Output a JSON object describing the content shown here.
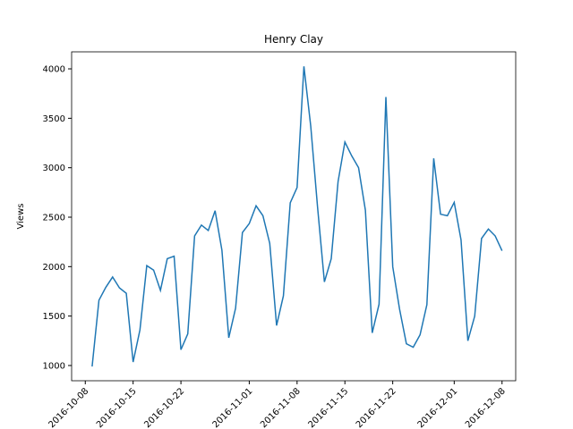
{
  "chart_data": {
    "type": "line",
    "title": "Henry Clay",
    "ylabel": "Views",
    "x": [
      "2016-10-09",
      "2016-10-10",
      "2016-10-11",
      "2016-10-12",
      "2016-10-13",
      "2016-10-14",
      "2016-10-15",
      "2016-10-16",
      "2016-10-17",
      "2016-10-18",
      "2016-10-19",
      "2016-10-20",
      "2016-10-21",
      "2016-10-22",
      "2016-10-23",
      "2016-10-24",
      "2016-10-25",
      "2016-10-26",
      "2016-10-27",
      "2016-10-28",
      "2016-10-29",
      "2016-10-30",
      "2016-10-31",
      "2016-11-01",
      "2016-11-02",
      "2016-11-03",
      "2016-11-04",
      "2016-11-05",
      "2016-11-06",
      "2016-11-07",
      "2016-11-08",
      "2016-11-09",
      "2016-11-10",
      "2016-11-11",
      "2016-11-12",
      "2016-11-13",
      "2016-11-14",
      "2016-11-15",
      "2016-11-16",
      "2016-11-17",
      "2016-11-18",
      "2016-11-19",
      "2016-11-20",
      "2016-11-21",
      "2016-11-22",
      "2016-11-23",
      "2016-11-24",
      "2016-11-25",
      "2016-11-26",
      "2016-11-27",
      "2016-11-28",
      "2016-11-29",
      "2016-11-30",
      "2016-12-01",
      "2016-12-02",
      "2016-12-03",
      "2016-12-04",
      "2016-12-05",
      "2016-12-06",
      "2016-12-07",
      "2016-12-08"
    ],
    "series": [
      {
        "color": "#1f77b4",
        "values": [
          990,
          1660,
          1790,
          1895,
          1785,
          1730,
          1035,
          1360,
          2010,
          1965,
          1760,
          2080,
          2105,
          1160,
          1320,
          2310,
          2420,
          2365,
          2565,
          2165,
          1280,
          1580,
          2345,
          2435,
          2615,
          2515,
          2235,
          1405,
          1705,
          2645,
          2800,
          4025,
          3420,
          2600,
          1845,
          2080,
          2860,
          3260,
          3120,
          3000,
          2570,
          1330,
          1620,
          3715,
          2000,
          1570,
          1220,
          1185,
          1310,
          1615,
          3095,
          2530,
          2515,
          2650,
          2270,
          1250,
          1500,
          2285,
          2380,
          2310,
          2160
        ]
      }
    ],
    "xlim": [
      "2016-10-06",
      "2016-12-10"
    ],
    "xticks": [
      "2016-10-08",
      "2016-10-15",
      "2016-10-22",
      "2016-11-01",
      "2016-11-08",
      "2016-11-15",
      "2016-11-22",
      "2016-12-01",
      "2016-12-08"
    ],
    "ylim": [
      846,
      4172
    ],
    "yticks": [
      1000,
      1500,
      2000,
      2500,
      3000,
      3500,
      4000
    ]
  }
}
